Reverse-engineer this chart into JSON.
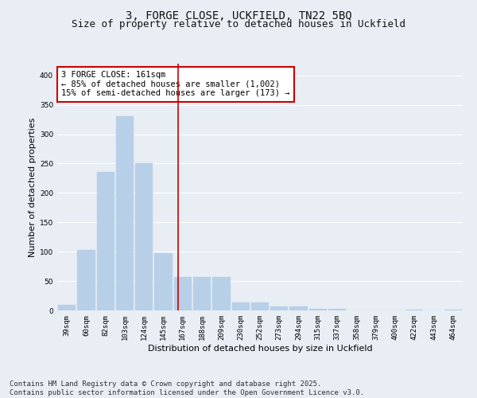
{
  "title_line1": "3, FORGE CLOSE, UCKFIELD, TN22 5BQ",
  "title_line2": "Size of property relative to detached houses in Uckfield",
  "xlabel": "Distribution of detached houses by size in Uckfield",
  "ylabel": "Number of detached properties",
  "annotation_line1": "3 FORGE CLOSE: 161sqm",
  "annotation_line2": "← 85% of detached houses are smaller (1,002)",
  "annotation_line3": "15% of semi-detached houses are larger (173) →",
  "property_size_sqm": 161,
  "bins": [
    39,
    60,
    82,
    103,
    124,
    145,
    167,
    188,
    209,
    230,
    252,
    273,
    294,
    315,
    337,
    358,
    379,
    400,
    422,
    443,
    464
  ],
  "bar_heights": [
    10,
    103,
    236,
    330,
    250,
    97,
    57,
    57,
    57,
    14,
    13,
    7,
    7,
    3,
    3,
    0,
    0,
    0,
    1,
    0,
    1
  ],
  "bar_color": "#b8cfe8",
  "bar_edge_color": "#b8cfe8",
  "vline_color": "#cc0000",
  "vline_x": 167,
  "annotation_box_color": "#cc0000",
  "annotation_text_color": "#000000",
  "background_color": "#e8eef4",
  "plot_bg_color": "#e8eef4",
  "grid_color": "#ffffff",
  "ylim": [
    0,
    420
  ],
  "yticks": [
    0,
    50,
    100,
    150,
    200,
    250,
    300,
    350,
    400
  ],
  "footer_text": "Contains HM Land Registry data © Crown copyright and database right 2025.\nContains public sector information licensed under the Open Government Licence v3.0.",
  "title_fontsize": 10,
  "subtitle_fontsize": 9,
  "axis_label_fontsize": 8,
  "tick_fontsize": 6.5,
  "annotation_fontsize": 7.5,
  "footer_fontsize": 6.5
}
